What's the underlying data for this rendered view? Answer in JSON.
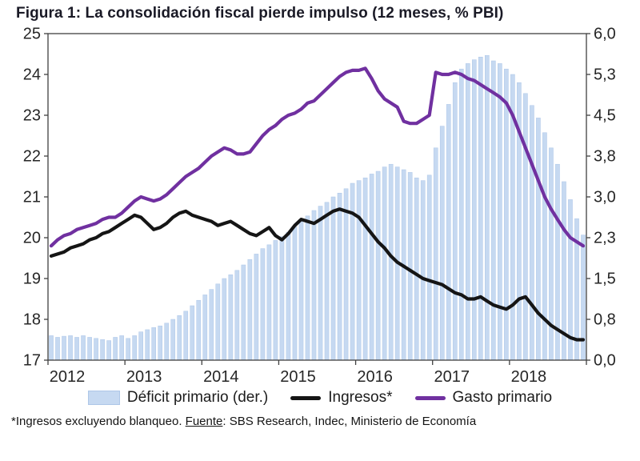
{
  "figure": {
    "title": "Figura 1: La consolidación fiscal pierde impulso (12 meses, % PBI)"
  },
  "legend": [
    {
      "label": "Déficit primario (der.)",
      "type": "bar"
    },
    {
      "label": "Ingresos*",
      "type": "line"
    },
    {
      "label": "Gasto primario",
      "type": "line"
    }
  ],
  "footnote": {
    "pre": "*Ingresos excluyendo blanqueo. ",
    "source_word": "Fuente",
    "post": ": SBS Research, Indec, Ministerio de Economía"
  },
  "chart_data": {
    "type": "combo",
    "frequency": "monthly",
    "x_start": "2012-01",
    "x_end": "2018-12",
    "x_year_labels": [
      "2012",
      "2013",
      "2014",
      "2015",
      "2016",
      "2017",
      "2018"
    ],
    "left_axis": {
      "min": 17,
      "max": 25,
      "tick_labels": [
        "25",
        "24",
        "23",
        "22",
        "21",
        "20",
        "19",
        "18",
        "17"
      ]
    },
    "right_axis": {
      "min": 0,
      "max": 6,
      "tick_labels": [
        "6,0",
        "5,3",
        "4,5",
        "3,8",
        "3,0",
        "2,3",
        "1,5",
        "0,8",
        "0,0"
      ]
    },
    "grid": false,
    "legend_position": "bottom",
    "colors": {
      "bar": "#c6d9f1",
      "bar_stroke": "#aec7e8",
      "ingresos": "#151515",
      "gasto": "#7030a0",
      "axis": "#404040",
      "text": "#262626",
      "title": "#1a1a26"
    },
    "series": [
      {
        "name": "Déficit primario (der.)",
        "type": "bar",
        "axis": "right",
        "color": "#c6d9f1",
        "values": [
          0.45,
          0.42,
          0.44,
          0.45,
          0.42,
          0.45,
          0.42,
          0.4,
          0.38,
          0.36,
          0.42,
          0.45,
          0.4,
          0.45,
          0.52,
          0.56,
          0.6,
          0.63,
          0.68,
          0.75,
          0.82,
          0.9,
          1.0,
          1.1,
          1.2,
          1.3,
          1.4,
          1.5,
          1.57,
          1.65,
          1.75,
          1.85,
          1.95,
          2.05,
          2.12,
          2.2,
          2.27,
          2.35,
          2.45,
          2.55,
          2.65,
          2.75,
          2.83,
          2.9,
          3.0,
          3.07,
          3.15,
          3.25,
          3.3,
          3.35,
          3.42,
          3.47,
          3.55,
          3.6,
          3.55,
          3.5,
          3.45,
          3.35,
          3.3,
          3.4,
          3.9,
          4.3,
          4.7,
          5.1,
          5.35,
          5.45,
          5.52,
          5.57,
          5.6,
          5.5,
          5.45,
          5.35,
          5.25,
          5.1,
          4.9,
          4.68,
          4.45,
          4.18,
          3.9,
          3.6,
          3.28,
          2.95,
          2.6,
          2.3
        ]
      },
      {
        "name": "Ingresos*",
        "type": "line",
        "axis": "left",
        "color": "#151515",
        "values": [
          19.55,
          19.6,
          19.65,
          19.75,
          19.8,
          19.85,
          19.95,
          20.0,
          20.1,
          20.15,
          20.25,
          20.35,
          20.45,
          20.55,
          20.5,
          20.35,
          20.2,
          20.25,
          20.35,
          20.5,
          20.6,
          20.65,
          20.55,
          20.5,
          20.45,
          20.4,
          20.3,
          20.35,
          20.4,
          20.3,
          20.2,
          20.1,
          20.05,
          20.15,
          20.25,
          20.05,
          19.95,
          20.1,
          20.3,
          20.45,
          20.4,
          20.35,
          20.45,
          20.55,
          20.65,
          20.7,
          20.65,
          20.6,
          20.5,
          20.3,
          20.1,
          19.9,
          19.75,
          19.55,
          19.4,
          19.3,
          19.2,
          19.1,
          19.0,
          18.95,
          18.9,
          18.85,
          18.75,
          18.65,
          18.6,
          18.5,
          18.5,
          18.55,
          18.45,
          18.35,
          18.3,
          18.25,
          18.35,
          18.5,
          18.55,
          18.35,
          18.15,
          18.0,
          17.85,
          17.75,
          17.65,
          17.55,
          17.5,
          17.5
        ]
      },
      {
        "name": "Gasto primario",
        "type": "line",
        "axis": "left",
        "color": "#7030a0",
        "values": [
          19.8,
          19.95,
          20.05,
          20.1,
          20.2,
          20.25,
          20.3,
          20.35,
          20.45,
          20.5,
          20.5,
          20.6,
          20.75,
          20.9,
          21.0,
          20.95,
          20.9,
          20.95,
          21.05,
          21.2,
          21.35,
          21.5,
          21.6,
          21.7,
          21.85,
          22.0,
          22.1,
          22.2,
          22.15,
          22.05,
          22.05,
          22.1,
          22.3,
          22.5,
          22.65,
          22.75,
          22.9,
          23.0,
          23.05,
          23.15,
          23.3,
          23.35,
          23.5,
          23.65,
          23.8,
          23.95,
          24.05,
          24.1,
          24.1,
          24.15,
          23.9,
          23.6,
          23.4,
          23.3,
          23.2,
          22.85,
          22.8,
          22.8,
          22.9,
          23.0,
          24.05,
          24.0,
          24.0,
          24.05,
          24.0,
          23.9,
          23.85,
          23.75,
          23.65,
          23.55,
          23.45,
          23.3,
          23.0,
          22.6,
          22.2,
          21.8,
          21.4,
          21.0,
          20.7,
          20.45,
          20.2,
          20.0,
          19.9,
          19.8
        ]
      }
    ]
  }
}
